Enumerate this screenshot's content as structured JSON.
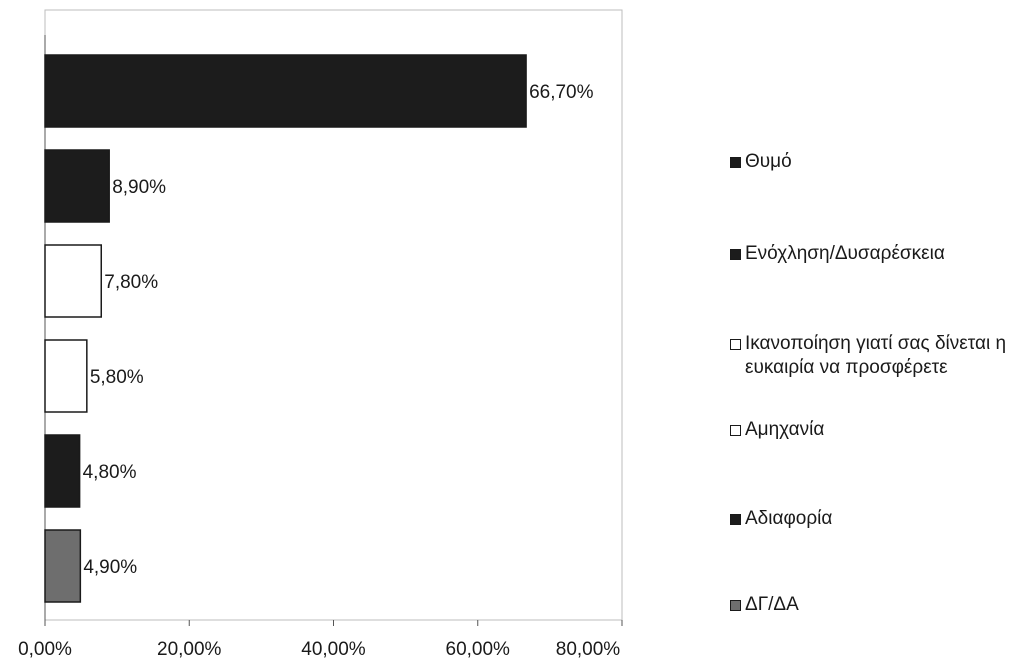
{
  "chart_data": {
    "type": "bar",
    "orientation": "horizontal",
    "categories": [
      "Θυμό",
      "Ενόχληση/Δυσαρέσκεια",
      "Ικανοποίηση γιατί σας δίνεται η ευκαιρία να προσφέρετε",
      "Αμηχανία",
      "Αδιαφορία",
      "ΔΓ/ΔΑ"
    ],
    "values": [
      66.7,
      8.9,
      7.8,
      5.8,
      4.8,
      4.9
    ],
    "data_labels": [
      "66,70%",
      "8,90%",
      "7,80%",
      "5,80%",
      "4,80%",
      "4,90%"
    ],
    "colors": [
      "#1c1c1c",
      "#1c1c1c",
      "#ffffff",
      "#ffffff",
      "#1c1c1c",
      "#6e6e6e"
    ],
    "xlim": [
      0,
      80
    ],
    "xticks": [
      0,
      20,
      40,
      60,
      80
    ],
    "xtick_labels": [
      "0,00%",
      "20,00%",
      "40,00%",
      "60,00%",
      "80,00%"
    ],
    "grid": false,
    "legend_placement": "right",
    "title": "",
    "xlabel": "",
    "ylabel": ""
  },
  "legend": {
    "items": [
      {
        "label": "Θυμό",
        "color": "#1c1c1c"
      },
      {
        "label": "Ενόχληση/Δυσαρέσκεια",
        "color": "#1c1c1c"
      },
      {
        "label": "Ικανοποίηση γιατί σας δίνεται η ευκαιρία να προσφέρετε",
        "color": "#ffffff"
      },
      {
        "label": "Αμηχανία",
        "color": "#ffffff"
      },
      {
        "label": "Αδιαφορία",
        "color": "#1c1c1c"
      },
      {
        "label": "ΔΓ/ΔΑ",
        "color": "#6e6e6e"
      }
    ]
  }
}
